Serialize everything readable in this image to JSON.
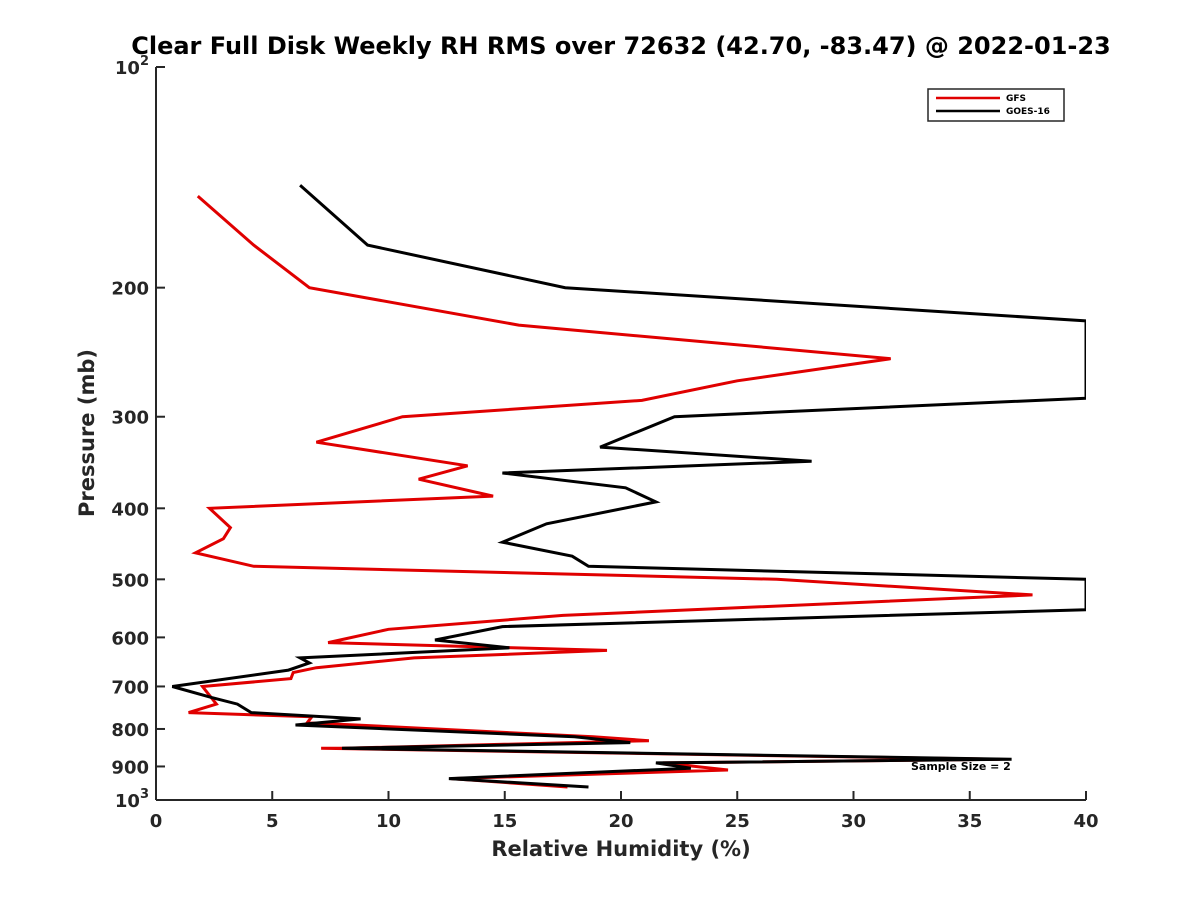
{
  "chart_data": {
    "type": "line",
    "title": "Clear Full Disk Weekly RH RMS over 72632 (42.70, -83.47) @ 2022-01-23",
    "xlabel": "Relative Humidity (%)",
    "ylabel": "Pressure (mb)",
    "xlim": [
      0,
      40
    ],
    "ylim": [
      100,
      1000
    ],
    "yscale": "log",
    "y_reversed": true,
    "grid": false,
    "legend_position": "top-right",
    "x_ticks": [
      "0",
      "5",
      "10",
      "15",
      "20",
      "25",
      "30",
      "35",
      "40"
    ],
    "y_ticks": [
      {
        "value": 100,
        "base": "10",
        "exp": "2"
      },
      {
        "value": 200,
        "label": "200"
      },
      {
        "value": 300,
        "label": "300"
      },
      {
        "value": 400,
        "label": "400"
      },
      {
        "value": 500,
        "label": "500"
      },
      {
        "value": 600,
        "label": "600"
      },
      {
        "value": 700,
        "label": "700"
      },
      {
        "value": 800,
        "label": "800"
      },
      {
        "value": 900,
        "label": "900"
      },
      {
        "value": 1000,
        "base": "10",
        "exp": "3"
      }
    ],
    "series": [
      {
        "name": "GFS",
        "color": "#e00000",
        "points": [
          [
            1.8,
            150
          ],
          [
            4.2,
            175
          ],
          [
            6.6,
            200
          ],
          [
            15.6,
            225
          ],
          [
            31.6,
            250
          ],
          [
            25.0,
            268
          ],
          [
            20.9,
            285
          ],
          [
            10.6,
            300
          ],
          [
            6.9,
            325
          ],
          [
            13.4,
            350
          ],
          [
            11.3,
            365
          ],
          [
            14.5,
            385
          ],
          [
            2.3,
            400
          ],
          [
            3.2,
            425
          ],
          [
            2.9,
            440
          ],
          [
            1.7,
            460
          ],
          [
            4.2,
            480
          ],
          [
            26.7,
            500
          ],
          [
            37.7,
            525
          ],
          [
            17.5,
            560
          ],
          [
            10.0,
            585
          ],
          [
            7.4,
            610
          ],
          [
            19.4,
            625
          ],
          [
            11.1,
            640
          ],
          [
            6.9,
            660
          ],
          [
            5.9,
            670
          ],
          [
            5.8,
            683
          ],
          [
            2.0,
            700
          ],
          [
            2.6,
            740
          ],
          [
            1.4,
            760
          ],
          [
            6.7,
            770
          ],
          [
            6.5,
            785
          ],
          [
            8.6,
            790
          ],
          [
            18.8,
            820
          ],
          [
            21.2,
            830
          ],
          [
            8.0,
            850
          ],
          [
            7.1,
            850
          ],
          [
            36.3,
            880
          ],
          [
            21.8,
            890
          ],
          [
            24.6,
            910
          ],
          [
            12.7,
            935
          ],
          [
            17.7,
            960
          ]
        ]
      },
      {
        "name": "GOES-16",
        "color": "#000000",
        "points": [
          [
            6.2,
            145
          ],
          [
            9.1,
            175
          ],
          [
            17.6,
            200
          ],
          [
            40.0,
            222
          ],
          [
            40.0,
            283
          ],
          [
            22.3,
            300
          ],
          [
            19.1,
            330
          ],
          [
            28.2,
            345
          ],
          [
            14.9,
            358
          ],
          [
            20.2,
            375
          ],
          [
            21.5,
            392
          ],
          [
            16.8,
            420
          ],
          [
            14.9,
            445
          ],
          [
            17.9,
            465
          ],
          [
            18.6,
            480
          ],
          [
            40.0,
            500
          ],
          [
            40.0,
            550
          ],
          [
            14.9,
            580
          ],
          [
            12.0,
            605
          ],
          [
            15.2,
            620
          ],
          [
            6.2,
            640
          ],
          [
            6.6,
            650
          ],
          [
            5.7,
            665
          ],
          [
            0.7,
            700
          ],
          [
            2.4,
            725
          ],
          [
            3.5,
            740
          ],
          [
            4.1,
            760
          ],
          [
            8.8,
            775
          ],
          [
            6.0,
            790
          ],
          [
            18.0,
            820
          ],
          [
            20.4,
            835
          ],
          [
            8.0,
            850
          ],
          [
            36.8,
            880
          ],
          [
            21.5,
            890
          ],
          [
            23.0,
            905
          ],
          [
            12.6,
            935
          ],
          [
            18.6,
            960
          ]
        ]
      }
    ],
    "annotations": [
      "Sample Size = 2"
    ]
  }
}
